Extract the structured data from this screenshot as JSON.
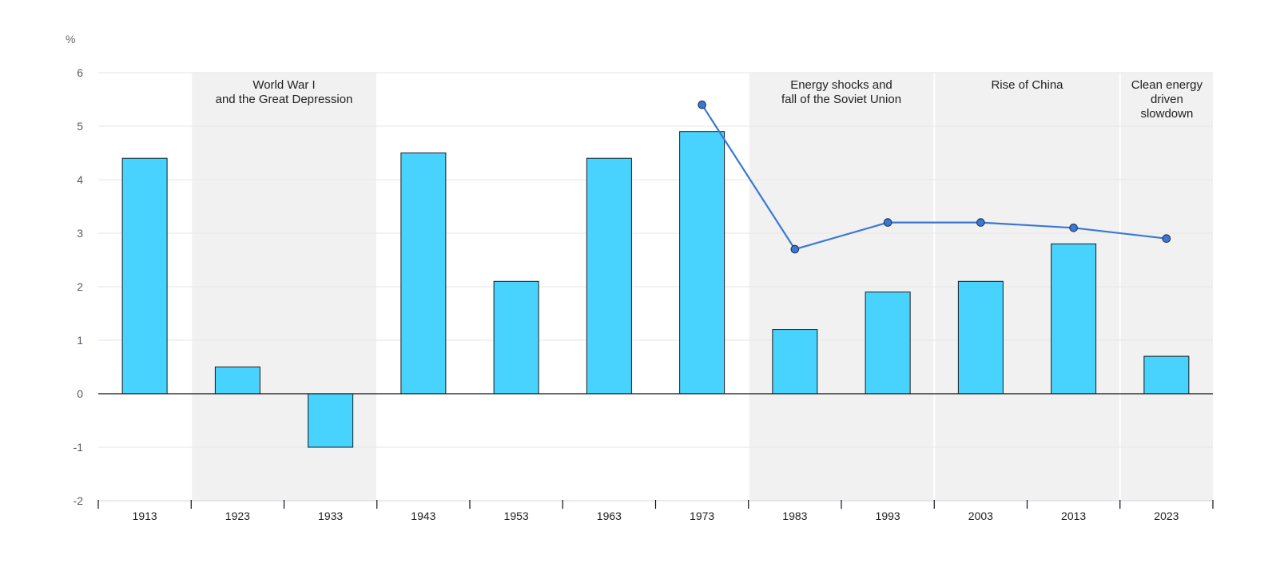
{
  "chart_data": {
    "type": "bar",
    "unit_label": "%",
    "categories": [
      "1913",
      "1923",
      "1933",
      "1943",
      "1953",
      "1963",
      "1973",
      "1983",
      "1993",
      "2003",
      "2013",
      "2023"
    ],
    "ylim": [
      -2,
      6
    ],
    "yticks": [
      -2,
      -1,
      0,
      1,
      2,
      3,
      4,
      5,
      6
    ],
    "grid": true,
    "colors": {
      "bar_fill": "#48d3ff",
      "bar_stroke": "#1a1a1a",
      "line": "#3a78d4",
      "band": "#f1f1f1",
      "grid": "#e6e6e6",
      "axis": "#111111"
    },
    "series": [
      {
        "type": "bar",
        "values": [
          4.4,
          0.5,
          -1.0,
          4.5,
          2.1,
          4.4,
          4.9,
          1.2,
          1.9,
          2.1,
          2.8,
          0.7
        ]
      },
      {
        "type": "line",
        "values": [
          null,
          null,
          null,
          null,
          null,
          null,
          5.4,
          2.7,
          3.2,
          3.2,
          3.1,
          2.9
        ]
      }
    ],
    "bands": [
      {
        "from": "1923",
        "to": "1933",
        "label": [
          "World War I",
          "and the Great Depression"
        ]
      },
      {
        "from": "1983",
        "to": "1993",
        "label": [
          "Energy shocks and",
          "fall of the Soviet Union"
        ]
      },
      {
        "from": "2003",
        "to": "2013",
        "label": [
          "Rise of China"
        ]
      },
      {
        "from": "2023",
        "to": "2023",
        "label": [
          "Clean energy",
          "driven",
          "slowdown"
        ]
      }
    ]
  }
}
